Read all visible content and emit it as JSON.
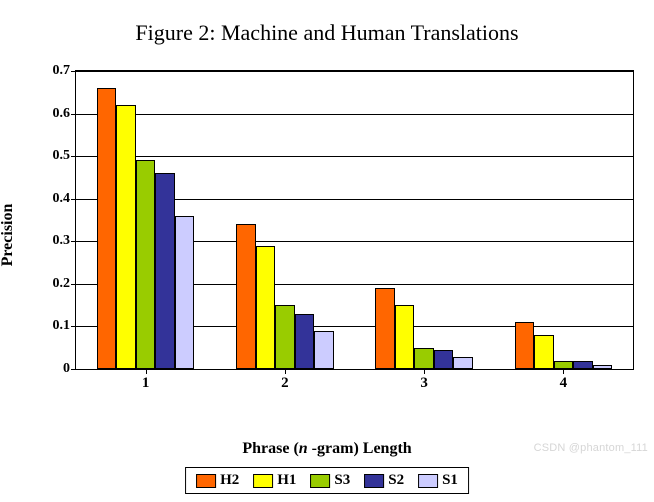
{
  "chart": {
    "type": "bar",
    "title": "Figure 2: Machine and Human Translations",
    "title_fontsize": 22,
    "xlabel_prefix": "Phrase (",
    "xlabel_italic": "n",
    "xlabel_suffix": " -gram) Length",
    "ylabel": "Precision",
    "label_fontsize": 16,
    "xlim": [
      0.5,
      4.5
    ],
    "ylim": [
      0,
      0.7
    ],
    "ytick_step": 0.1,
    "yticks": [
      "0",
      "0.1",
      "0.2",
      "0.3",
      "0.4",
      "0.5",
      "0.6",
      "0.7"
    ],
    "categories": [
      "1",
      "2",
      "3",
      "4"
    ],
    "series": [
      {
        "name": "H2",
        "color": "#ff6600",
        "values": [
          0.66,
          0.34,
          0.19,
          0.11
        ]
      },
      {
        "name": "H1",
        "color": "#ffff00",
        "values": [
          0.62,
          0.29,
          0.15,
          0.08
        ]
      },
      {
        "name": "S3",
        "color": "#99cc00",
        "values": [
          0.49,
          0.15,
          0.05,
          0.02
        ]
      },
      {
        "name": "S2",
        "color": "#333399",
        "values": [
          0.46,
          0.13,
          0.045,
          0.02
        ]
      },
      {
        "name": "S1",
        "color": "#ccccff",
        "values": [
          0.36,
          0.09,
          0.028,
          0.01
        ]
      }
    ],
    "bar_width": 0.14,
    "background_color": "#ffffff",
    "grid_color": "#000000",
    "border_color": "#000000"
  },
  "watermark": "CSDN @phantom_111"
}
